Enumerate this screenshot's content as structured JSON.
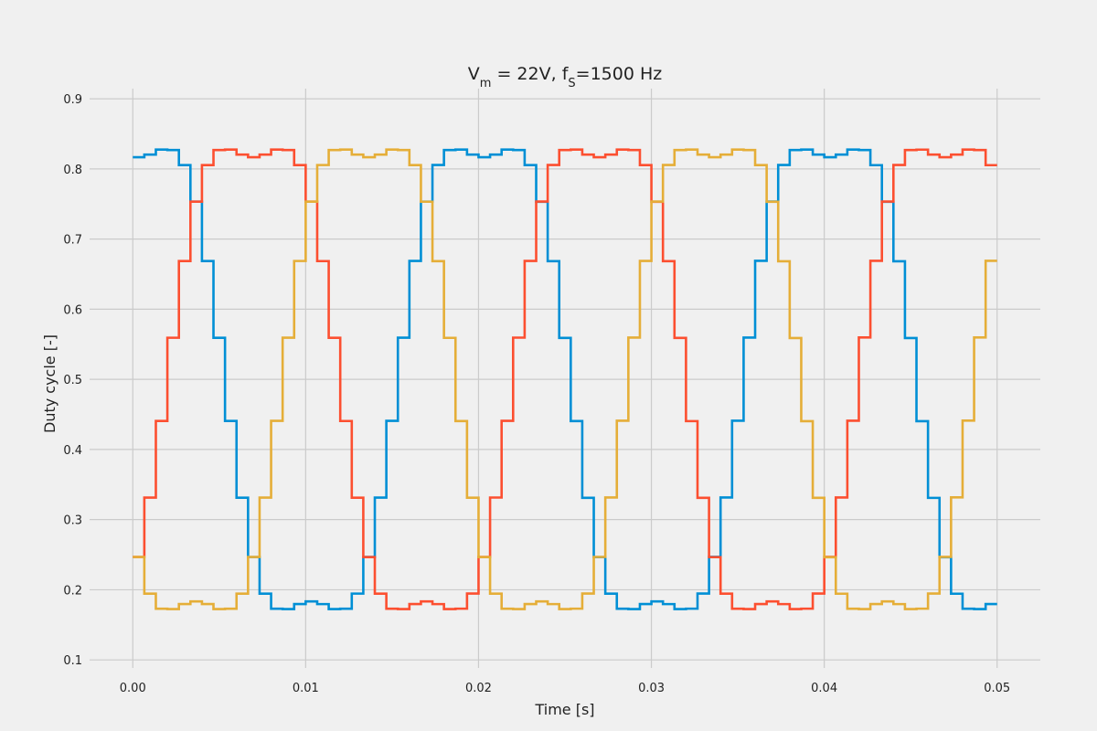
{
  "chart_data": {
    "type": "line",
    "step": true,
    "title": "V_m = 22V, f_S=1500 Hz",
    "title_parts": {
      "V": "V",
      "m_sub": "m",
      "mid": " = 22V, f",
      "s_sub": "S",
      "rest": "=1500 Hz"
    },
    "xlabel": "Time [s]",
    "ylabel": "Duty cycle [-]",
    "xlim": [
      -0.0025,
      0.0525
    ],
    "ylim": [
      0.0885,
      0.9145
    ],
    "grid": true,
    "x_ticks": [
      0.0,
      0.01,
      0.02,
      0.03,
      0.04,
      0.05
    ],
    "x_tick_labels": [
      "0.00",
      "0.01",
      "0.02",
      "0.03",
      "0.04",
      "0.05"
    ],
    "y_ticks": [
      0.1,
      0.2,
      0.3,
      0.4,
      0.5,
      0.6,
      0.7,
      0.8,
      0.9
    ],
    "y_tick_labels": [
      "0.1",
      "0.2",
      "0.3",
      "0.4",
      "0.5",
      "0.6",
      "0.7",
      "0.8",
      "0.9"
    ],
    "sample_period": 0.0006667,
    "x_end": 0.05,
    "duty_offset": 0.5,
    "modulation_amplitude": 0.38,
    "fundamental_hz": 50,
    "third_harmonic_ratio": 0.1667,
    "series": [
      {
        "color": "#008fd5",
        "phase_deg": 90
      },
      {
        "color": "#fc4f30",
        "phase_deg": -30
      },
      {
        "color": "#e5ae38",
        "phase_deg": 210
      }
    ]
  }
}
